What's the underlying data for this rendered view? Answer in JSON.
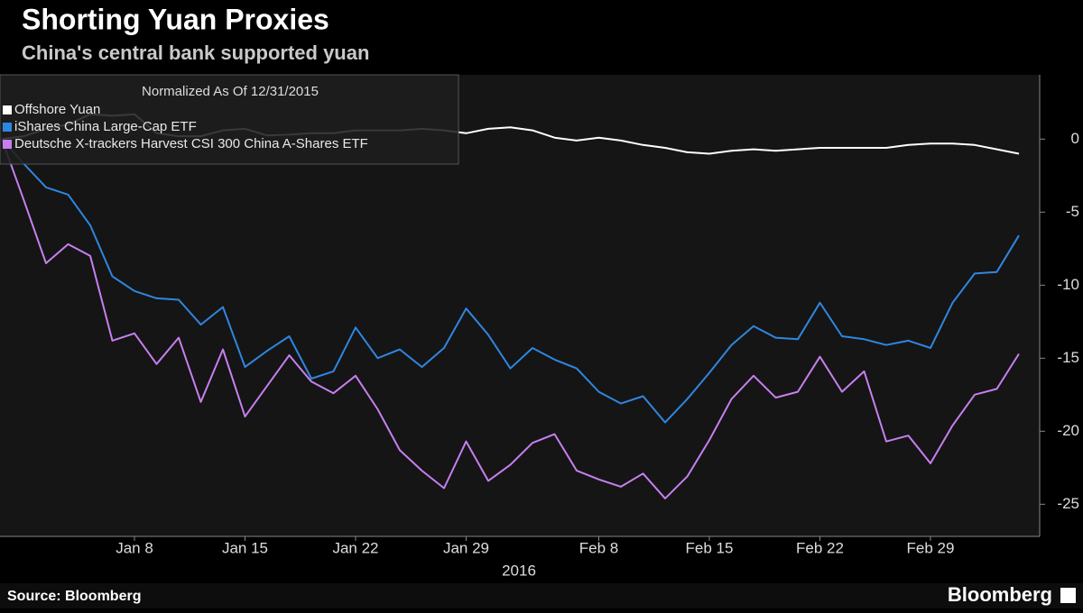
{
  "chart_data": {
    "type": "line",
    "title": "Shorting Yuan Proxies",
    "subtitle": "China's central bank supported yuan",
    "legend_title": "Normalized As Of 12/31/2015",
    "xlabel": "2016",
    "source": "Source: Bloomberg",
    "brand": "Bloomberg",
    "categories": [
      null,
      null,
      null,
      null,
      null,
      null,
      "Jan 8",
      null,
      null,
      null,
      null,
      "Jan 15",
      null,
      null,
      null,
      null,
      "Jan 22",
      null,
      null,
      null,
      null,
      "Jan 29",
      null,
      null,
      null,
      null,
      null,
      "Feb 8",
      null,
      null,
      null,
      null,
      "Feb 15",
      null,
      null,
      null,
      null,
      "Feb 22",
      null,
      null,
      null,
      null,
      "Feb 29",
      null,
      null,
      null,
      null
    ],
    "series": [
      {
        "name": "Offshore Yuan",
        "color": "#ffffff",
        "values": [
          0,
          0.2,
          0.7,
          1.0,
          1.7,
          1.6,
          1.7,
          0.4,
          0.2,
          0.2,
          0.6,
          0.7,
          0.25,
          0.3,
          0.4,
          0.4,
          0.6,
          0.6,
          0.6,
          0.7,
          0.6,
          0.4,
          0.7,
          0.8,
          0.6,
          0.1,
          -0.1,
          0.1,
          -0.1,
          -0.4,
          -0.6,
          -0.9,
          -1.0,
          -0.8,
          -0.7,
          -0.8,
          -0.7,
          -0.6,
          -0.6,
          -0.6,
          -0.6,
          -0.4,
          -0.3,
          -0.3,
          -0.4,
          -0.7,
          -1.0
        ]
      },
      {
        "name": "iShares China Large-Cap ETF",
        "color": "#2f86e0",
        "values": [
          0,
          -1.7,
          -3.3,
          -3.8,
          -5.9,
          -9.4,
          -10.4,
          -10.9,
          -11.0,
          -12.7,
          -11.5,
          -15.6,
          -14.5,
          -13.5,
          -16.4,
          -15.9,
          -12.9,
          -15.0,
          -14.4,
          -15.6,
          -14.3,
          -11.6,
          -13.4,
          -15.7,
          -14.3,
          -15.1,
          -15.7,
          -17.3,
          -18.1,
          -17.6,
          -19.4,
          -17.8,
          -16.0,
          -14.1,
          -12.8,
          -13.6,
          -13.7,
          -11.2,
          -13.5,
          -13.7,
          -14.1,
          -13.8,
          -14.3,
          -11.2,
          -9.2,
          -9.1,
          -6.6
        ]
      },
      {
        "name": "Deutsche X-trackers Harvest CSI 300 China A-Shares ETF",
        "color": "#c77ff0",
        "values": [
          0,
          -4.2,
          -8.5,
          -7.2,
          -8.0,
          -13.8,
          -13.3,
          -15.4,
          -13.6,
          -18.0,
          -14.4,
          -19.0,
          -16.9,
          -14.8,
          -16.6,
          -17.4,
          -16.2,
          -18.5,
          -21.3,
          -22.7,
          -23.9,
          -20.7,
          -23.4,
          -22.3,
          -20.8,
          -20.2,
          -22.7,
          -23.3,
          -23.8,
          -22.9,
          -24.6,
          -23.1,
          -20.6,
          -17.8,
          -16.2,
          -17.7,
          -17.3,
          -14.9,
          -17.3,
          -15.9,
          -20.7,
          -20.3,
          -22.2,
          -19.6,
          -17.5,
          -17.1,
          -14.7
        ]
      }
    ],
    "ylim": [
      -27.2,
      4.4
    ],
    "yticks": [
      0,
      -5,
      -10,
      -15,
      -20,
      -25
    ],
    "grid": false
  }
}
